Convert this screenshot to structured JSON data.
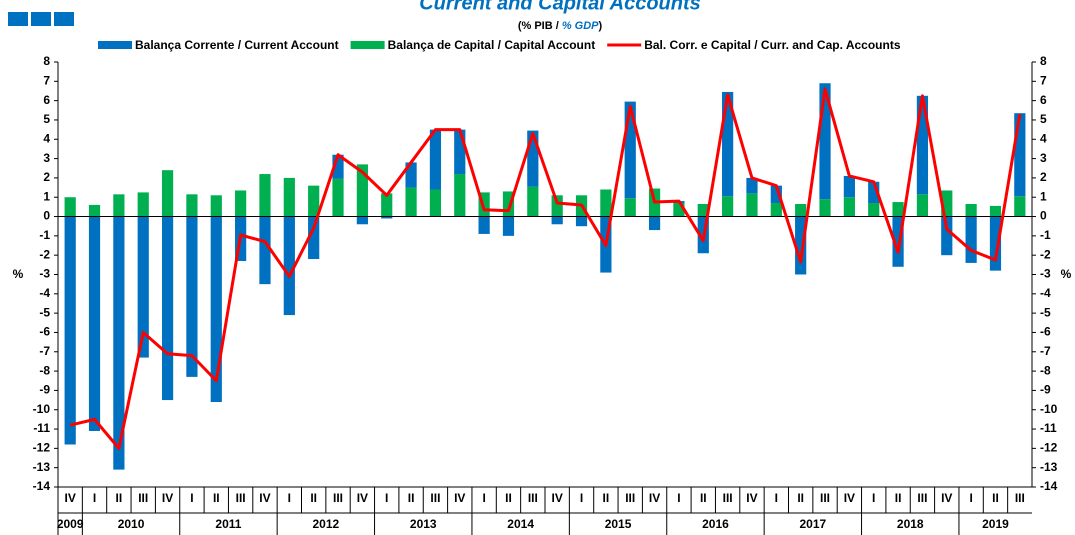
{
  "chart_data": {
    "type": "stacked_bar_line",
    "title": "Current and Capital Accounts",
    "subtitle": [
      "(% PIB / ",
      "% GDP",
      ")"
    ],
    "y_label": "%",
    "y2_label": "%",
    "categories": [
      "IV",
      "I",
      "II",
      "III",
      "IV",
      "I",
      "II",
      "III",
      "IV",
      "I",
      "II",
      "III",
      "IV",
      "I",
      "II",
      "III",
      "IV",
      "I",
      "II",
      "III",
      "IV",
      "I",
      "II",
      "III",
      "IV",
      "I",
      "II",
      "III",
      "IV",
      "I",
      "II",
      "III",
      "IV",
      "I",
      "II",
      "III",
      "IV",
      "I",
      "II",
      "III"
    ],
    "years": [
      "2009",
      "2010",
      "2011",
      "2012",
      "2013",
      "2014",
      "2015",
      "2016",
      "2017",
      "2018",
      "2019"
    ],
    "ylim": [
      -14,
      8
    ],
    "yticks": [
      -14,
      -13,
      -12,
      -11,
      -10,
      -9,
      -8,
      -7,
      -6,
      -5,
      -4,
      -3,
      -2,
      -1,
      0,
      1,
      2,
      3,
      4,
      5,
      6,
      7,
      8
    ],
    "y2lim": [
      -14,
      8
    ],
    "y2ticks": [
      -14,
      -13,
      -12,
      -11,
      -10,
      -9,
      -8,
      -7,
      -6,
      -5,
      -4,
      -3,
      -2,
      -1,
      0,
      1,
      2,
      3,
      4,
      5,
      6,
      7,
      8
    ],
    "series": [
      {
        "name": "Balança Corrente / Current Account",
        "color": "#0070c0",
        "kind": "bar",
        "values": [
          -11.8,
          -11.1,
          -13.1,
          -7.3,
          -9.5,
          -8.3,
          -9.6,
          -2.3,
          -3.5,
          -5.1,
          -2.2,
          1.25,
          -0.4,
          -0.1,
          1.3,
          3.1,
          2.3,
          -0.9,
          -1.0,
          2.9,
          -0.4,
          -0.5,
          -2.9,
          5.0,
          -0.7,
          0.1,
          -1.9,
          5.4,
          0.8,
          0.9,
          -3.0,
          6.0,
          1.1,
          1.1,
          -2.6,
          5.1,
          -2.0,
          -2.4,
          -2.8,
          4.3
        ]
      },
      {
        "name": "Balança de Capital / Capital Account",
        "color": "#00b050",
        "kind": "bar",
        "values": [
          1.0,
          0.6,
          1.15,
          1.25,
          2.4,
          1.15,
          1.1,
          1.35,
          2.2,
          2.0,
          1.6,
          1.95,
          2.7,
          1.2,
          1.5,
          1.4,
          2.2,
          1.25,
          1.3,
          1.55,
          1.1,
          1.1,
          1.4,
          0.95,
          1.45,
          0.7,
          0.65,
          1.05,
          1.2,
          0.7,
          0.65,
          0.9,
          1.0,
          0.7,
          0.75,
          1.15,
          1.35,
          0.65,
          0.55,
          1.05
        ]
      },
      {
        "name": "Bal. Corr. e Capital / Curr. and Cap. Accounts",
        "color": "#ff0000",
        "kind": "line",
        "values": [
          -10.8,
          -10.5,
          -12.0,
          -6.0,
          -7.1,
          -7.2,
          -8.5,
          -0.95,
          -1.3,
          -3.1,
          -0.6,
          3.2,
          2.3,
          1.1,
          2.8,
          4.5,
          4.5,
          0.35,
          0.3,
          4.3,
          0.7,
          0.6,
          -1.5,
          5.7,
          0.75,
          0.8,
          -1.25,
          6.3,
          2.0,
          1.6,
          -2.35,
          6.6,
          2.1,
          1.8,
          -1.85,
          6.25,
          -0.65,
          -1.75,
          -2.25,
          5.3
        ]
      }
    ]
  }
}
